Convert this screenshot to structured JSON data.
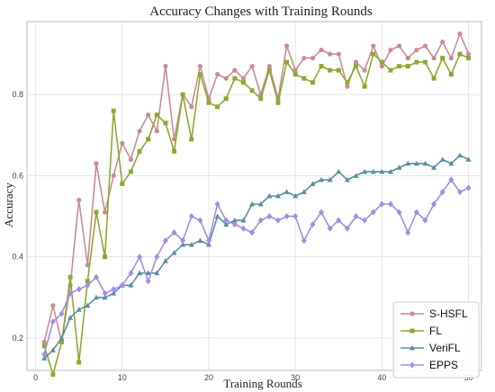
{
  "chart_data": {
    "type": "line",
    "title": "Accuracy Changes with Training Rounds",
    "xlabel": "Training Rounds",
    "ylabel": "Accuracy",
    "xlim": [
      -1,
      51.5
    ],
    "ylim": [
      0.12,
      0.98
    ],
    "xticks": [
      0,
      10,
      20,
      30,
      40,
      50
    ],
    "yticks": [
      0.2,
      0.4,
      0.6,
      0.8
    ],
    "grid": true,
    "legend_position": "bottom-right",
    "x": [
      1,
      2,
      3,
      4,
      5,
      6,
      7,
      8,
      9,
      10,
      11,
      12,
      13,
      14,
      15,
      16,
      17,
      18,
      19,
      20,
      21,
      22,
      23,
      24,
      25,
      26,
      27,
      28,
      29,
      30,
      31,
      32,
      33,
      34,
      35,
      36,
      37,
      38,
      39,
      40,
      41,
      42,
      43,
      44,
      45,
      46,
      47,
      48,
      49,
      50
    ],
    "series": [
      {
        "name": "S-HSFL",
        "color": "#c98c96",
        "marker": "circle",
        "values": [
          0.19,
          0.28,
          0.19,
          0.33,
          0.54,
          0.38,
          0.63,
          0.51,
          0.6,
          0.68,
          0.64,
          0.71,
          0.75,
          0.71,
          0.87,
          0.69,
          0.8,
          0.77,
          0.87,
          0.79,
          0.85,
          0.84,
          0.86,
          0.84,
          0.87,
          0.8,
          0.87,
          0.79,
          0.92,
          0.86,
          0.89,
          0.89,
          0.91,
          0.9,
          0.9,
          0.82,
          0.88,
          0.86,
          0.92,
          0.87,
          0.91,
          0.92,
          0.89,
          0.91,
          0.92,
          0.89,
          0.93,
          0.89,
          0.95,
          0.9
        ]
      },
      {
        "name": "FL",
        "color": "#8fa832",
        "marker": "square",
        "values": [
          0.18,
          0.11,
          0.19,
          0.35,
          0.14,
          0.34,
          0.51,
          0.4,
          0.76,
          0.58,
          0.61,
          0.66,
          0.69,
          0.75,
          0.73,
          0.66,
          0.8,
          0.69,
          0.85,
          0.78,
          0.77,
          0.79,
          0.84,
          0.83,
          0.81,
          0.79,
          0.86,
          0.78,
          0.88,
          0.85,
          0.84,
          0.83,
          0.87,
          0.86,
          0.86,
          0.83,
          0.87,
          0.82,
          0.9,
          0.88,
          0.86,
          0.87,
          0.87,
          0.88,
          0.88,
          0.84,
          0.89,
          0.85,
          0.9,
          0.89
        ]
      },
      {
        "name": "VeriFL",
        "color": "#5b8ea0",
        "marker": "triangle",
        "values": [
          0.15,
          0.17,
          0.2,
          0.25,
          0.27,
          0.28,
          0.3,
          0.3,
          0.31,
          0.33,
          0.33,
          0.36,
          0.36,
          0.36,
          0.39,
          0.41,
          0.43,
          0.43,
          0.44,
          0.43,
          0.5,
          0.48,
          0.49,
          0.49,
          0.53,
          0.53,
          0.55,
          0.55,
          0.56,
          0.55,
          0.56,
          0.58,
          0.59,
          0.59,
          0.61,
          0.59,
          0.6,
          0.61,
          0.61,
          0.61,
          0.61,
          0.62,
          0.63,
          0.63,
          0.63,
          0.62,
          0.64,
          0.63,
          0.65,
          0.64
        ]
      },
      {
        "name": "EPPS",
        "color": "#a58fe0",
        "marker": "diamond",
        "values": [
          0.16,
          0.24,
          0.26,
          0.31,
          0.32,
          0.33,
          0.35,
          0.31,
          0.32,
          0.33,
          0.36,
          0.4,
          0.34,
          0.4,
          0.44,
          0.46,
          0.44,
          0.5,
          0.49,
          0.44,
          0.53,
          0.49,
          0.48,
          0.47,
          0.46,
          0.49,
          0.5,
          0.49,
          0.5,
          0.5,
          0.44,
          0.48,
          0.51,
          0.47,
          0.49,
          0.47,
          0.5,
          0.49,
          0.51,
          0.53,
          0.53,
          0.51,
          0.46,
          0.51,
          0.49,
          0.53,
          0.56,
          0.59,
          0.56,
          0.57
        ]
      }
    ]
  }
}
